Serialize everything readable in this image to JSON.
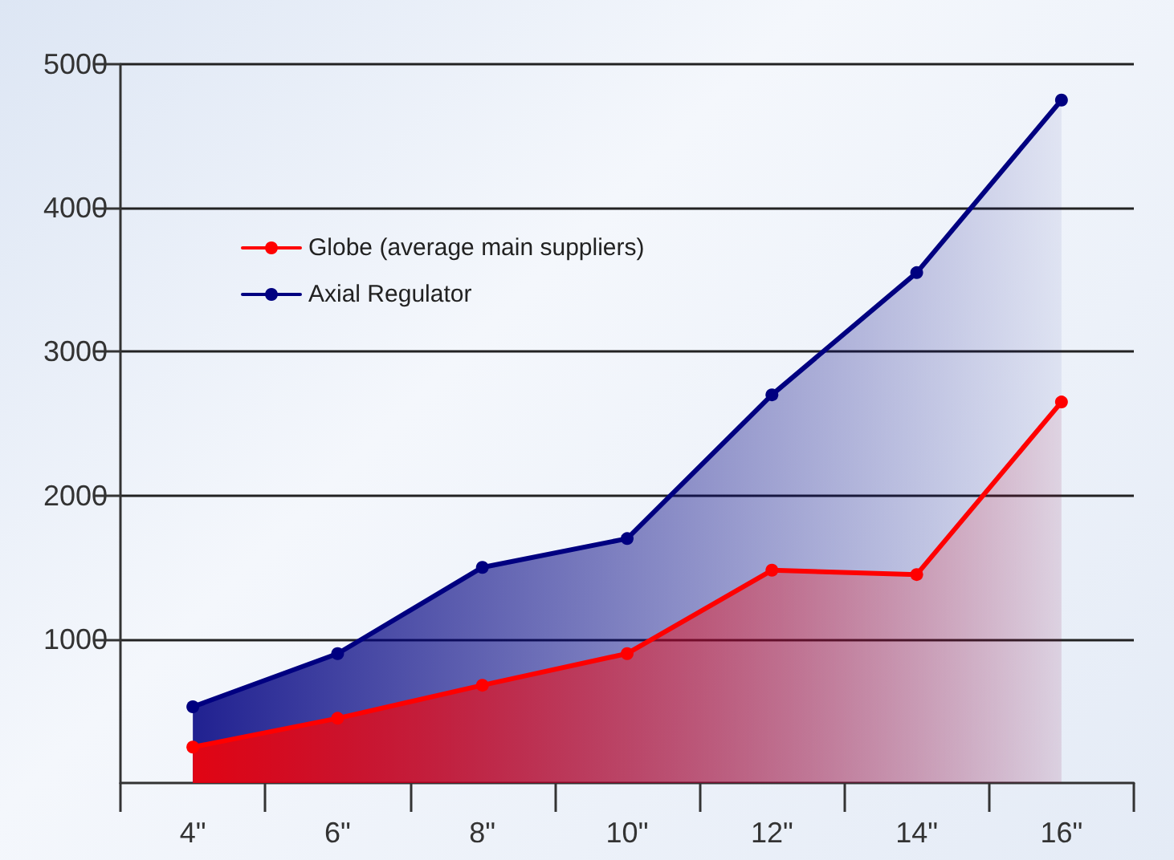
{
  "chart_data": {
    "type": "area",
    "categories": [
      "4\"",
      "6\"",
      "8\"",
      "10\"",
      "12\"",
      "14\"",
      "16\""
    ],
    "series": [
      {
        "name": "Globe (average main suppliers)",
        "color": "#ff0000",
        "values": [
          250,
          450,
          680,
          900,
          1480,
          1450,
          2650
        ]
      },
      {
        "name": "Axial Regulator",
        "color": "#000080",
        "values": [
          530,
          900,
          1500,
          1700,
          2700,
          3550,
          4750
        ]
      }
    ],
    "ylim": [
      0,
      5000
    ],
    "yticks": [
      1000,
      2000,
      3000,
      4000,
      5000
    ],
    "grid": "y",
    "legend": "top left",
    "marker": "circle",
    "line_style": "solid"
  }
}
